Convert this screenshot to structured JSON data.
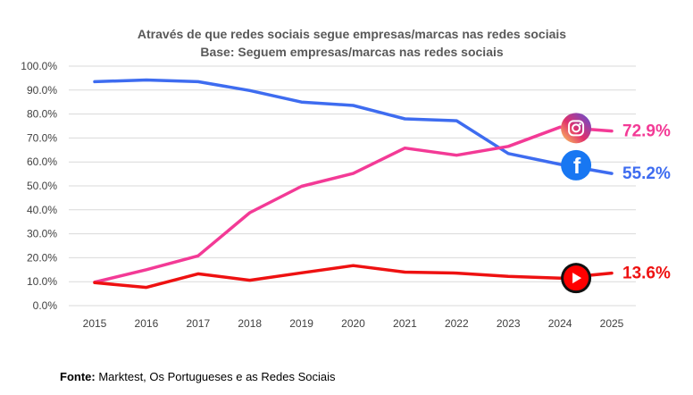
{
  "chart_data": {
    "type": "line",
    "title": "Através de que redes sociais segue empresas/marcas nas redes sociais",
    "subtitle": "Base: Seguem empresas/marcas nas redes sociais",
    "x": [
      "2015",
      "2016",
      "2017",
      "2018",
      "2019",
      "2020",
      "2021",
      "2022",
      "2023",
      "2024",
      "2025"
    ],
    "ylim": [
      0,
      100
    ],
    "yticks": [
      "0.0%",
      "10.0%",
      "20.0%",
      "30.0%",
      "40.0%",
      "50.0%",
      "60.0%",
      "70.0%",
      "80.0%",
      "90.0%",
      "100.0%"
    ],
    "grid": true,
    "series": [
      {
        "name": "Facebook",
        "color": "#3E6CF0",
        "icon": "facebook-icon",
        "end_label": "55.2%",
        "values": [
          93.5,
          94.2,
          93.5,
          89.8,
          85.0,
          83.6,
          78.0,
          77.2,
          63.5,
          59.0,
          55.2
        ]
      },
      {
        "name": "Instagram",
        "color": "#F33A96",
        "icon": "instagram-icon",
        "end_label": "72.9%",
        "values": [
          9.8,
          15.0,
          20.8,
          38.8,
          49.8,
          55.2,
          65.8,
          62.8,
          66.5,
          74.5,
          72.9
        ]
      },
      {
        "name": "YouTube",
        "color": "#EE1111",
        "icon": "youtube-icon",
        "end_label": "13.6%",
        "values": [
          9.6,
          7.6,
          13.3,
          10.6,
          13.7,
          16.7,
          14.0,
          13.6,
          12.2,
          11.5,
          13.6
        ]
      }
    ],
    "source_label": "Fonte:",
    "source_text": "Marktest, Os Portugueses e as Redes Sociais"
  }
}
